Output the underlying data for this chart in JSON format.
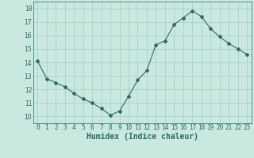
{
  "xlabel": "Humidex (Indice chaleur)",
  "x": [
    0,
    1,
    2,
    3,
    4,
    5,
    6,
    7,
    8,
    9,
    10,
    11,
    12,
    13,
    14,
    15,
    16,
    17,
    18,
    19,
    20,
    21,
    22,
    23
  ],
  "y": [
    14.1,
    12.8,
    12.5,
    12.2,
    11.7,
    11.3,
    11.0,
    10.6,
    10.1,
    10.4,
    11.5,
    12.7,
    13.4,
    15.3,
    15.6,
    16.8,
    17.3,
    17.8,
    17.4,
    16.5,
    15.9,
    15.4,
    15.0,
    14.6
  ],
  "line_color": "#2e6b5e",
  "marker": "D",
  "marker_size": 2,
  "bg_color": "#c8e8e0",
  "grid_color": "#a8ccc6",
  "ylim": [
    9.5,
    18.5
  ],
  "xlim": [
    -0.5,
    23.5
  ],
  "yticks": [
    10,
    11,
    12,
    13,
    14,
    15,
    16,
    17,
    18
  ],
  "xticks": [
    0,
    1,
    2,
    3,
    4,
    5,
    6,
    7,
    8,
    9,
    10,
    11,
    12,
    13,
    14,
    15,
    16,
    17,
    18,
    19,
    20,
    21,
    22,
    23
  ],
  "tick_fontsize": 5.5,
  "xlabel_fontsize": 7,
  "spine_color": "#2e6b5e"
}
